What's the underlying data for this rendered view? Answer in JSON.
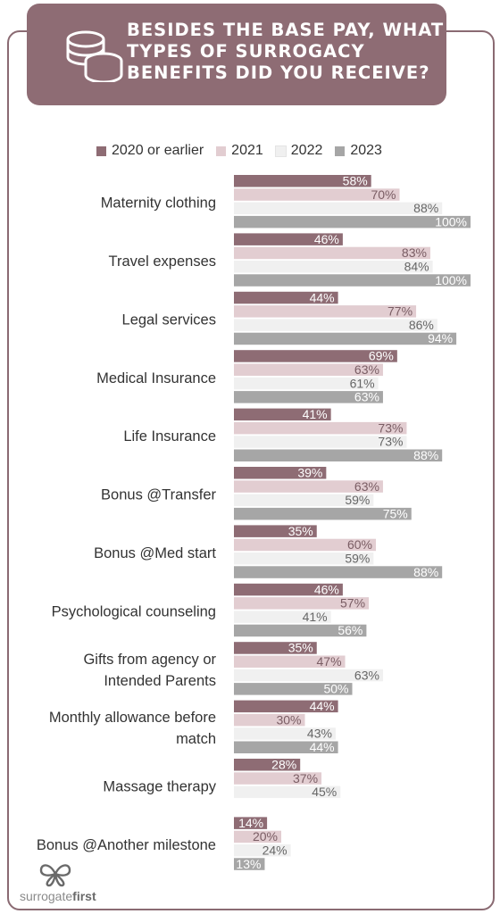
{
  "header": {
    "title_lines": [
      "BESIDES THE BASE PAY, WHAT",
      "TYPES OF SURROGACY",
      "BENEFITS DID YOU RECEIVE?"
    ],
    "icon": "coins-icon"
  },
  "legend": [
    {
      "name": "2020 or earlier",
      "color": "#8e6c74"
    },
    {
      "name": "2021",
      "color": "#e2cdd1"
    },
    {
      "name": "2022",
      "color": "#f0f0f0"
    },
    {
      "name": "2023",
      "color": "#a6a6a6"
    }
  ],
  "chart_data": {
    "type": "bar",
    "orientation": "horizontal",
    "title": "BESIDES THE BASE PAY, WHAT TYPES OF SURROGACY BENEFITS DID YOU RECEIVE?",
    "categories": [
      [
        "Maternity clothing"
      ],
      [
        "Travel expenses"
      ],
      [
        "Legal services"
      ],
      [
        "Medical Insurance"
      ],
      [
        "Life Insurance"
      ],
      [
        "Bonus @Transfer"
      ],
      [
        "Bonus @Med start"
      ],
      [
        "Psychological counseling"
      ],
      [
        "Gifts from agency or",
        "Intended Parents"
      ],
      [
        "Monthly allowance before",
        "match"
      ],
      [
        "Massage therapy"
      ],
      [
        "Bonus @Another milestone"
      ]
    ],
    "series": [
      {
        "name": "2020 or earlier",
        "color": "#8e6c74",
        "values": [
          58,
          46,
          44,
          69,
          41,
          39,
          35,
          46,
          35,
          44,
          28,
          14
        ]
      },
      {
        "name": "2021",
        "color": "#e2cdd1",
        "values": [
          70,
          83,
          77,
          63,
          73,
          63,
          60,
          57,
          47,
          30,
          37,
          20
        ]
      },
      {
        "name": "2022",
        "color": "#f0f0f0",
        "values": [
          88,
          84,
          86,
          61,
          73,
          59,
          59,
          41,
          63,
          43,
          45,
          24
        ]
      },
      {
        "name": "2023",
        "color": "#a6a6a6",
        "values": [
          100,
          100,
          94,
          63,
          88,
          75,
          88,
          56,
          50,
          44,
          null,
          13
        ]
      }
    ],
    "value_suffix": "%",
    "xlim": [
      0,
      100
    ],
    "legend_position": "top",
    "grid": false
  },
  "logo": {
    "text_light": "surrogate",
    "text_bold": "first"
  }
}
